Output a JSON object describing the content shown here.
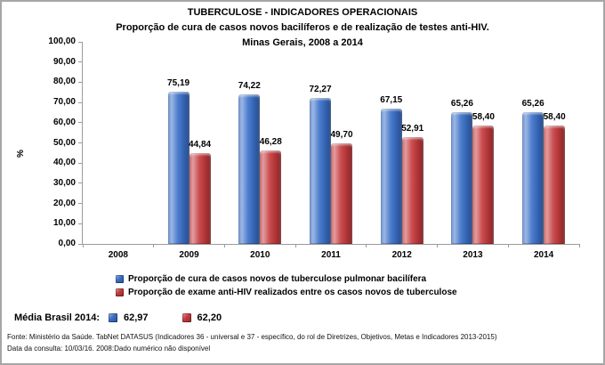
{
  "chart_data": {
    "type": "bar",
    "title": "TUBERCULOSE - INDICADORES OPERACIONAIS",
    "subtitle": "Proporção de cura de casos novos bacilíferos e de realização de testes anti-HIV.",
    "subtitle2": "Minas Gerais, 2008 a 2014",
    "categories": [
      "2008",
      "2009",
      "2010",
      "2011",
      "2012",
      "2013",
      "2014"
    ],
    "series": [
      {
        "key": "cure",
        "name": "Proporção de cura de casos novos de tuberculose pulmonar bacilífera",
        "color": "#3a6fc8",
        "values": [
          null,
          75.19,
          74.22,
          72.27,
          67.15,
          65.26,
          65.26
        ],
        "display": [
          "",
          "75,19",
          "74,22",
          "72,27",
          "67,15",
          "65,26",
          "65,26"
        ]
      },
      {
        "key": "hiv",
        "name": "Proporção de exame anti-HIV realizados entre os casos novos de tuberculose",
        "color": "#c53a3d",
        "values": [
          null,
          44.84,
          46.28,
          49.7,
          52.91,
          58.4,
          58.4
        ],
        "display": [
          "",
          "44,84",
          "46,28",
          "49,70",
          "52,91",
          "58,40",
          "58,40"
        ]
      }
    ],
    "xlabel": "",
    "ylabel": "%",
    "ylim": [
      0,
      100
    ],
    "ytick_step": 10,
    "ytick_labels": [
      "0,00",
      "10,00",
      "20,00",
      "30,00",
      "40,00",
      "50,00",
      "60,00",
      "70,00",
      "80,00",
      "90,00",
      "100,00"
    ],
    "grid": false,
    "legend_position": "bottom"
  },
  "media_brasil": {
    "label": "Média Brasil 2014:",
    "cure_value": "62,97",
    "hiv_value": "62,20"
  },
  "footer": {
    "line1": "Fonte: Ministério da Saúde. TabNet DATASUS (Indicadores 36 - universal e 37 - específico, do rol de Diretrizes, Objetivos, Metas e Indicadores 2013-2015)",
    "line2": "Data da consulta: 10/03/16. 2008:Dado numérico não disponível"
  }
}
